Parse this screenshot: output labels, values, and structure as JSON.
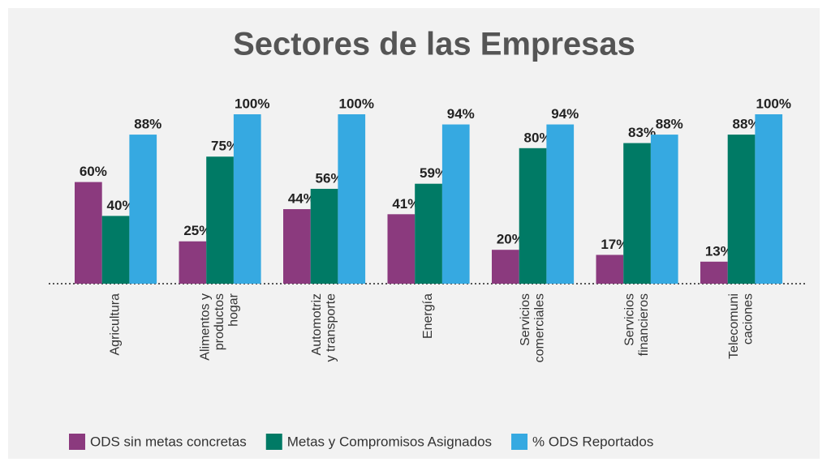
{
  "chart_data": {
    "type": "bar",
    "title": "Sectores de las Empresas",
    "categories": [
      [
        "Agricultura"
      ],
      [
        "Alimentos y",
        "productos",
        "hogar"
      ],
      [
        "Automotriz",
        "y transporte"
      ],
      [
        "Energía"
      ],
      [
        "Servicios",
        "comerciales"
      ],
      [
        "Servicios",
        "financieros"
      ],
      [
        "Telecomuni",
        "caciones"
      ]
    ],
    "series": [
      {
        "name": "ODS sin metas concretas",
        "color": "#8b3a7e",
        "values": [
          60,
          25,
          44,
          41,
          20,
          17,
          13
        ],
        "value_labels": [
          "60%",
          "25%",
          "44%",
          "41%",
          "20%",
          "17%",
          "13%"
        ]
      },
      {
        "name": "Metas y Compromisos Asignados",
        "color": "#007a65",
        "values": [
          40,
          75,
          56,
          59,
          80,
          83,
          88
        ],
        "value_labels": [
          "40%",
          "75%",
          "56%",
          "59%",
          "80%",
          "83%",
          "88%"
        ]
      },
      {
        "name": "% ODS Reportados",
        "color": "#36a9e1",
        "values": [
          88,
          100,
          100,
          94,
          94,
          88,
          100
        ],
        "value_labels": [
          "88%",
          "100%",
          "100%",
          "94%",
          "94%",
          "88%",
          "100%"
        ]
      }
    ],
    "legend": "bottom"
  }
}
